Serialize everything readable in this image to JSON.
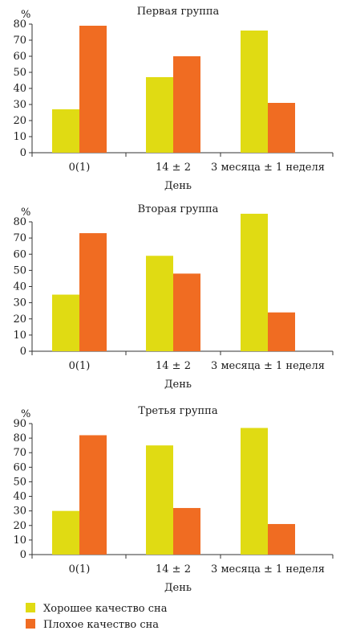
{
  "colors": {
    "good": "#e0db13",
    "bad": "#f06c22",
    "axis": "#333333"
  },
  "legend": {
    "items": [
      {
        "label": "Хорошее качество сна",
        "color": "#e0db13"
      },
      {
        "label": "Плохое качество сна",
        "color": "#f06c22"
      }
    ]
  },
  "chart_data": [
    {
      "type": "bar",
      "title": "Первая группа",
      "ylabel": "%",
      "xlabel": "День",
      "categories": [
        "0(1)",
        "14 ± 2",
        "3 месяца ± 1 неделя"
      ],
      "ylim": [
        0,
        80
      ],
      "yticks": [
        0,
        10,
        20,
        30,
        40,
        50,
        60,
        70,
        80
      ],
      "series": [
        {
          "name": "Хорошее качество сна",
          "values": [
            27,
            47,
            76
          ]
        },
        {
          "name": "Плохое качество сна",
          "values": [
            79,
            60,
            31
          ]
        }
      ]
    },
    {
      "type": "bar",
      "title": "Вторая группа",
      "ylabel": "%",
      "xlabel": "День",
      "categories": [
        "0(1)",
        "14 ± 2",
        "3 месяца ± 1 неделя"
      ],
      "ylim": [
        0,
        80
      ],
      "yticks": [
        0,
        10,
        20,
        30,
        40,
        50,
        60,
        70,
        80
      ],
      "series": [
        {
          "name": "Хорошее качество сна",
          "values": [
            35,
            59,
            85
          ]
        },
        {
          "name": "Плохое качество сна",
          "values": [
            73,
            48,
            24
          ]
        }
      ]
    },
    {
      "type": "bar",
      "title": "Третья группа",
      "ylabel": "%",
      "xlabel": "День",
      "categories": [
        "0(1)",
        "14 ± 2",
        "3 месяца ± 1 неделя"
      ],
      "ylim": [
        0,
        90
      ],
      "yticks": [
        0,
        10,
        20,
        30,
        40,
        50,
        60,
        70,
        80,
        90
      ],
      "series": [
        {
          "name": "Хорошее качество сна",
          "values": [
            30,
            75,
            87
          ]
        },
        {
          "name": "Плохое качество сна",
          "values": [
            82,
            32,
            21
          ]
        }
      ]
    }
  ]
}
